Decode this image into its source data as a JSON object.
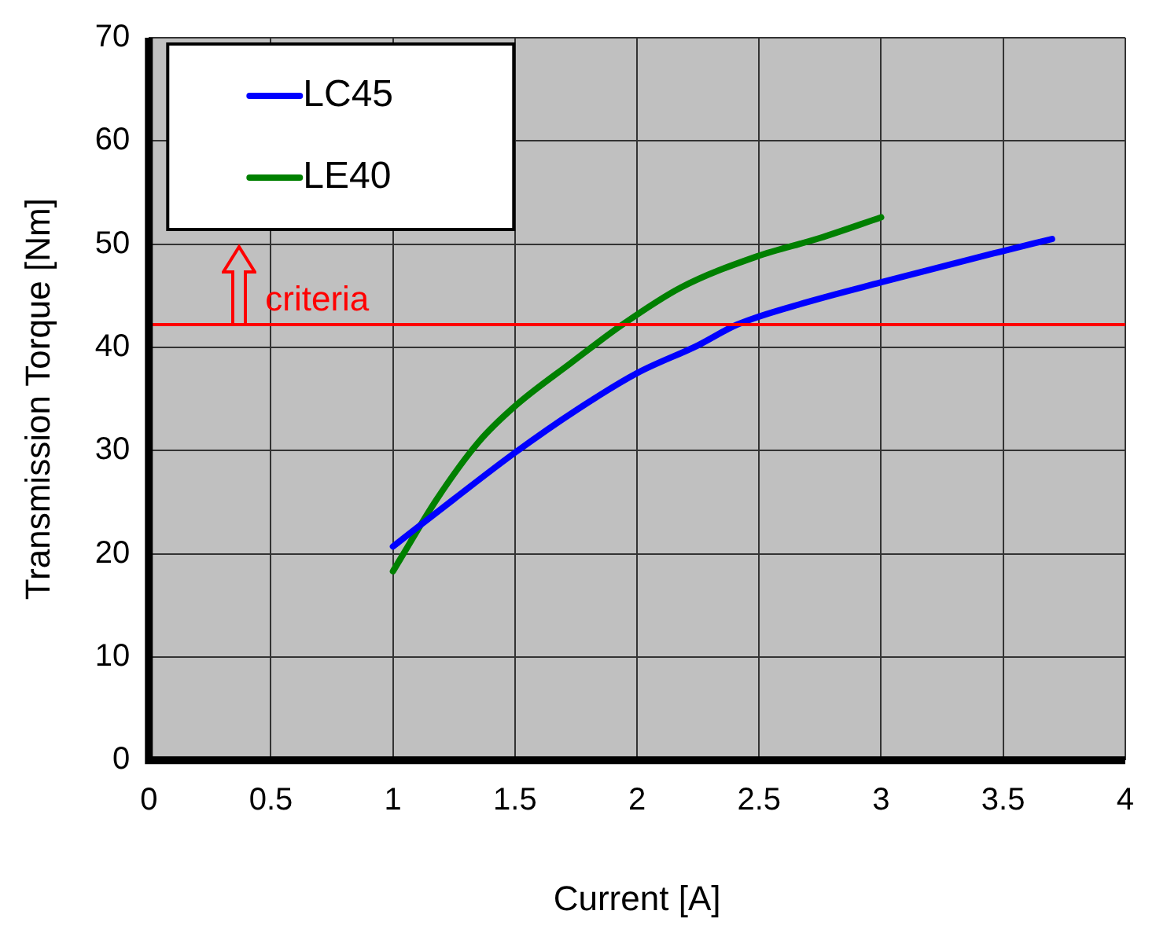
{
  "chart_data": {
    "type": "line",
    "xlabel": "Current [A]",
    "ylabel": "Transmission Torque [Nm]",
    "xlim": [
      0,
      4
    ],
    "xticks": [
      0,
      0.5,
      1,
      1.5,
      2,
      2.5,
      3,
      3.5,
      4
    ],
    "ylim": [
      0,
      70
    ],
    "yticks": [
      0,
      10,
      20,
      30,
      40,
      50,
      60,
      70
    ],
    "series": [
      {
        "name": "LC45",
        "color": "#0000ff",
        "x": [
          1,
          1.25,
          1.5,
          1.75,
          2,
          2.25,
          2.41,
          2.7,
          3,
          3.46,
          3.7
        ],
        "values": [
          20.7,
          25.3,
          29.8,
          33.9,
          37.5,
          40.2,
          42.2,
          44.4,
          46.3,
          49.1,
          50.5
        ]
      },
      {
        "name": "LE40",
        "color": "#008000",
        "x": [
          1,
          1.18,
          1.35,
          1.5,
          1.73,
          1.94,
          2.18,
          2.49,
          2.75,
          3
        ],
        "values": [
          18.3,
          25.3,
          30.8,
          34.3,
          38.5,
          42.2,
          45.8,
          48.8,
          50.6,
          52.6
        ]
      }
    ],
    "ref_lines": [
      {
        "axis": "y",
        "value": 42.2,
        "label": "criteria",
        "color": "#ff0000"
      }
    ],
    "grid": true,
    "legend": "top left",
    "marker": "none",
    "line_style": "solid"
  }
}
